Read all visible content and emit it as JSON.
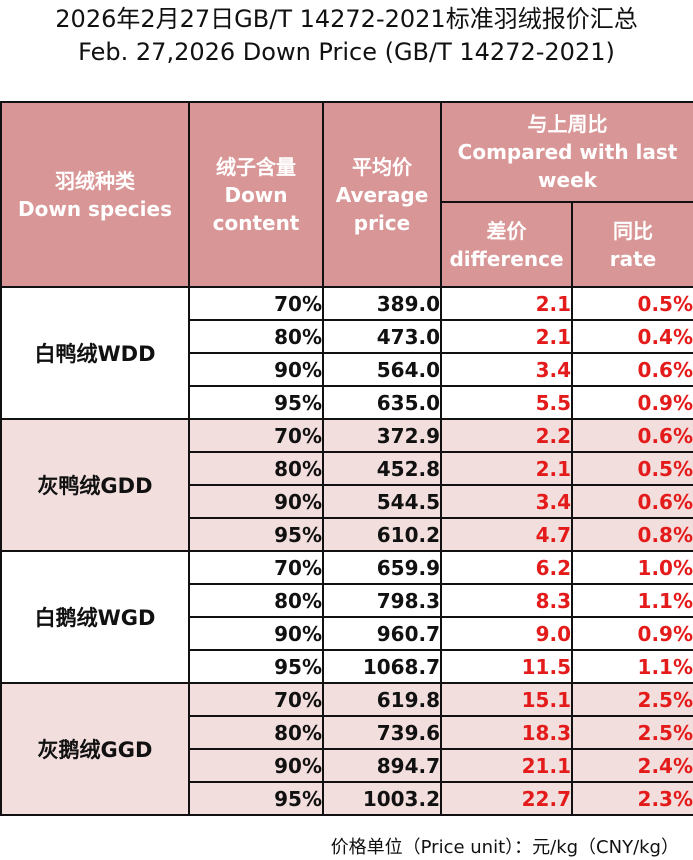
{
  "title_cn": "2026年2月27日GB/T 14272-2021标准羽绒报价汇总",
  "title_en": "Feb. 27,2026 Down Price (GB/T 14272-2021)",
  "headers": {
    "species_cn": "羽绒种类",
    "species_en": "Down species",
    "content_cn": "绒子含量",
    "content_en1": "Down",
    "content_en2": "content",
    "avg_cn": "平均价",
    "avg_en1": "Average",
    "avg_en2": "price",
    "compare_cn": "与上周比",
    "compare_en1": "Compared with last",
    "compare_en2": "week",
    "diff_cn": "差价",
    "diff_en": "difference",
    "rate_cn": "同比",
    "rate_en": "rate"
  },
  "groups": [
    {
      "name": "白鸭绒WDD",
      "rows": [
        {
          "content": "70%",
          "price": "389.0",
          "diff": "2.1",
          "rate": "0.5%"
        },
        {
          "content": "80%",
          "price": "473.0",
          "diff": "2.1",
          "rate": "0.4%"
        },
        {
          "content": "90%",
          "price": "564.0",
          "diff": "3.4",
          "rate": "0.6%"
        },
        {
          "content": "95%",
          "price": "635.0",
          "diff": "5.5",
          "rate": "0.9%"
        }
      ]
    },
    {
      "name": "灰鸭绒GDD",
      "rows": [
        {
          "content": "70%",
          "price": "372.9",
          "diff": "2.2",
          "rate": "0.6%"
        },
        {
          "content": "80%",
          "price": "452.8",
          "diff": "2.1",
          "rate": "0.5%"
        },
        {
          "content": "90%",
          "price": "544.5",
          "diff": "3.4",
          "rate": "0.6%"
        },
        {
          "content": "95%",
          "price": "610.2",
          "diff": "4.7",
          "rate": "0.8%"
        }
      ]
    },
    {
      "name": "白鹅绒WGD",
      "rows": [
        {
          "content": "70%",
          "price": "659.9",
          "diff": "6.2",
          "rate": "1.0%"
        },
        {
          "content": "80%",
          "price": "798.3",
          "diff": "8.3",
          "rate": "1.1%"
        },
        {
          "content": "90%",
          "price": "960.7",
          "diff": "9.0",
          "rate": "0.9%"
        },
        {
          "content": "95%",
          "price": "1068.7",
          "diff": "11.5",
          "rate": "1.1%"
        }
      ]
    },
    {
      "name": "灰鹅绒GGD",
      "rows": [
        {
          "content": "70%",
          "price": "619.8",
          "diff": "15.1",
          "rate": "2.5%"
        },
        {
          "content": "80%",
          "price": "739.6",
          "diff": "18.3",
          "rate": "2.5%"
        },
        {
          "content": "90%",
          "price": "894.7",
          "diff": "21.1",
          "rate": "2.4%"
        },
        {
          "content": "95%",
          "price": "1003.2",
          "diff": "22.7",
          "rate": "2.3%"
        }
      ]
    }
  ],
  "footer": "价格单位（Price unit）：元/kg（CNY/kg）",
  "colors": {
    "header_bg": "#d99696",
    "header_text": "#ffffff",
    "alt_row_bg": "#f3dede",
    "change_text": "#e41b1b"
  }
}
